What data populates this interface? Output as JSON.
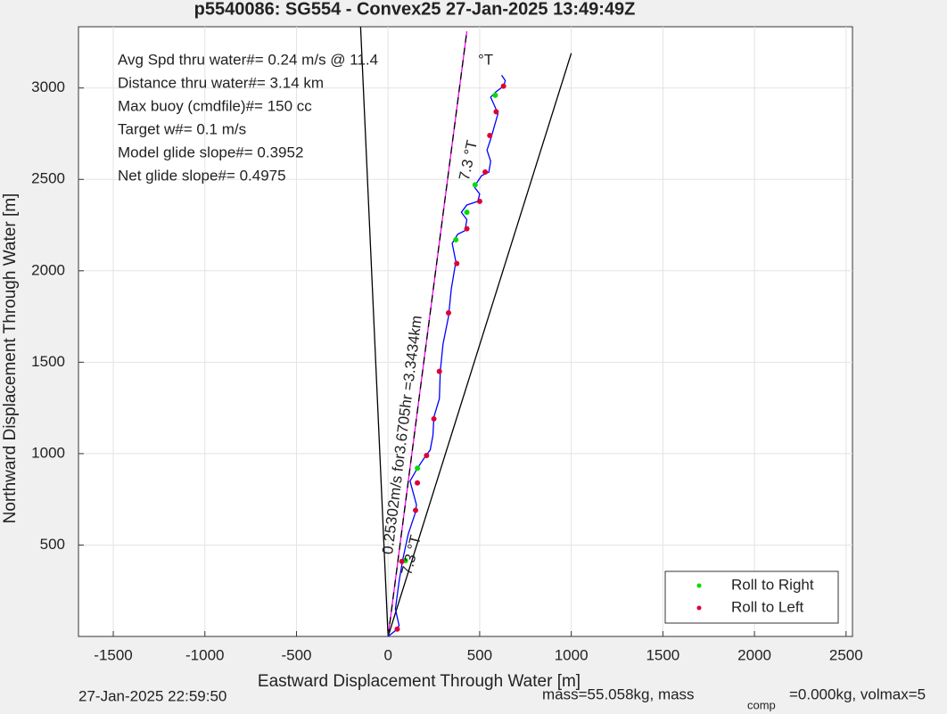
{
  "chart_data": {
    "type": "scatter",
    "title": "p5540086: SG554 - Convex25 27-Jan-2025 13:49:49Z",
    "xlabel": "Eastward Displacement Through Water [m]",
    "ylabel": "Northward Displacement Through Water [m]",
    "xlim": [
      -1690,
      2535
    ],
    "ylim": [
      0,
      3335
    ],
    "xticks": [
      -1500,
      -1000,
      -500,
      0,
      500,
      1000,
      1500,
      2000,
      2500
    ],
    "yticks": [
      500,
      1000,
      1500,
      2000,
      2500,
      3000
    ],
    "grid": true,
    "legend": "lower right",
    "track": {
      "color": "#0000ff",
      "x": [
        0,
        50,
        60,
        40,
        60,
        80,
        110,
        150,
        155,
        120,
        160,
        200,
        230,
        245,
        250,
        280,
        285,
        300,
        330,
        345,
        370,
        350,
        380,
        420,
        430,
        400,
        430,
        490,
        500,
        470,
        510,
        550,
        560,
        540,
        560,
        600,
        560,
        590,
        630,
        640,
        620
      ],
      "y": [
        0,
        40,
        60,
        150,
        300,
        420,
        560,
        680,
        720,
        850,
        920,
        980,
        1020,
        1100,
        1200,
        1300,
        1450,
        1600,
        1750,
        1900,
        2050,
        2150,
        2200,
        2220,
        2280,
        2320,
        2360,
        2380,
        2420,
        2460,
        2520,
        2540,
        2600,
        2660,
        2720,
        2860,
        2950,
        2980,
        3010,
        3040,
        3070
      ]
    },
    "lines": [
      {
        "color": "#000000",
        "x": [
          0,
          -150
        ],
        "y": [
          0,
          3335
        ]
      },
      {
        "color": "#000000",
        "x": [
          0,
          1000
        ],
        "y": [
          0,
          3190
        ]
      },
      {
        "color": "#ff00ff",
        "x": [
          0,
          430
        ],
        "y": [
          0,
          3310
        ]
      },
      {
        "color": "#000000",
        "dash": true,
        "x": [
          0,
          430
        ],
        "y": [
          0,
          3310
        ]
      }
    ],
    "series": [
      {
        "name": "Roll to Right",
        "color": "#00dd00",
        "x": [
          160,
          370,
          430,
          475,
          585,
          95
        ],
        "y": [
          920,
          2170,
          2320,
          2470,
          2960,
          415
        ]
      },
      {
        "name": "Roll to Left",
        "color": "#dd0033",
        "x": [
          50,
          75,
          150,
          160,
          210,
          250,
          280,
          330,
          375,
          430,
          500,
          530,
          555,
          590,
          630
        ],
        "y": [
          40,
          410,
          690,
          840,
          990,
          1190,
          1450,
          1770,
          2040,
          2230,
          2380,
          2540,
          2740,
          2870,
          3010
        ]
      }
    ],
    "info": [
      "Avg Spd thru water#=  0.24 m/s @  11.4",
      "Distance thru water#=  3.14 km",
      "Max buoy (cmdfile)#= 150 cc",
      "Target w#= 0.1 m/s",
      "Model glide slope#= 0.3952",
      "Net glide slope#= 0.4975"
    ],
    "annotations": [
      "°T",
      "7.3 °T",
      "7.3 °T",
      "0.25302m/s for3.6705hr =3.3434km"
    ],
    "footer": [
      "27-Jan-2025 22:59:50",
      "mass=55.058kg, mass",
      "comp",
      "=0.000kg, volmax=5"
    ]
  }
}
